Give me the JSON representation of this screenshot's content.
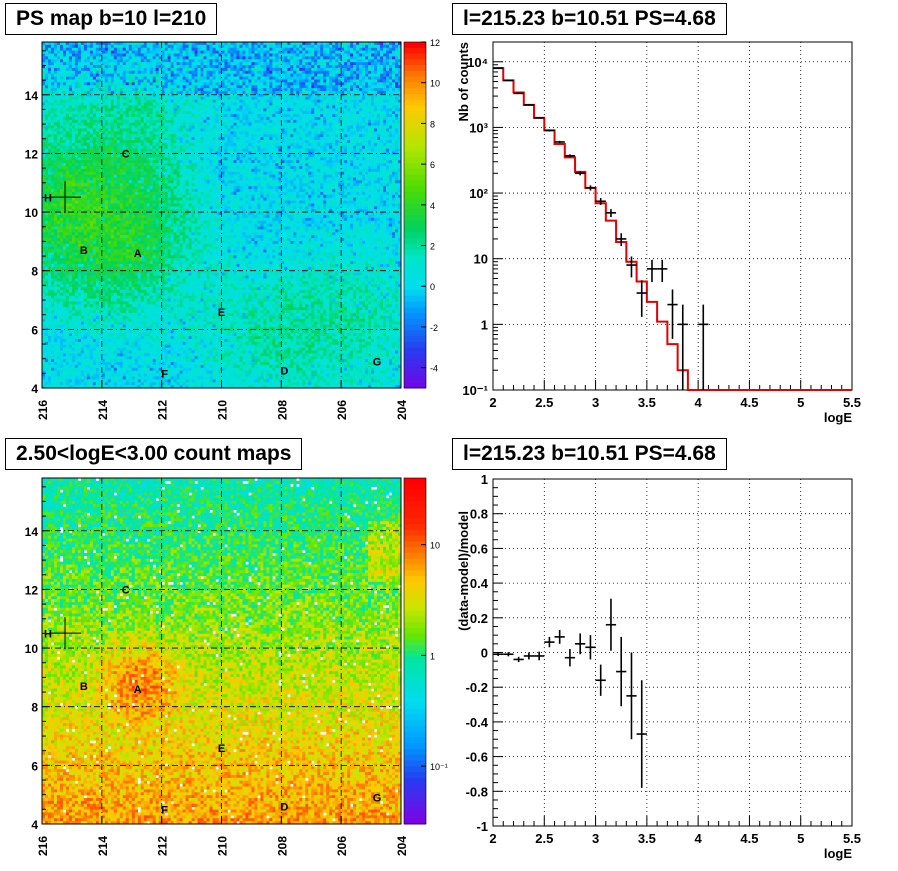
{
  "panels": {
    "ps_map": {
      "title": "PS map b=10 l=210",
      "colorbar_ticks": [
        "-4",
        "-2",
        "0",
        "2",
        "4",
        "6",
        "8",
        "10",
        "12"
      ]
    },
    "count_map": {
      "title": "2.50<logE<3.00 count maps",
      "colorbar_ticks": [
        "10⁻¹",
        "1",
        "10"
      ]
    },
    "spectrum": {
      "title": "l=215.23 b=10.51 PS=4.68"
    },
    "residual": {
      "title": "l=215.23 b=10.51 PS=4.68"
    },
    "source_labels": [
      {
        "name": "H",
        "l": 215.8,
        "b": 10.5
      },
      {
        "name": "C",
        "l": 213.2,
        "b": 12.0
      },
      {
        "name": "B",
        "l": 214.6,
        "b": 8.7
      },
      {
        "name": "A",
        "l": 212.8,
        "b": 8.6
      },
      {
        "name": "E",
        "l": 210.0,
        "b": 6.6
      },
      {
        "name": "F",
        "l": 211.9,
        "b": 4.5
      },
      {
        "name": "D",
        "l": 207.9,
        "b": 4.6
      },
      {
        "name": "G",
        "l": 204.8,
        "b": 4.9
      }
    ],
    "marker": {
      "l": 215.23,
      "b": 10.51
    }
  },
  "chart_data": [
    {
      "type": "heatmap",
      "title": "PS map b=10 l=210",
      "xlabel": "",
      "ylabel": "",
      "xlim": [
        216,
        204
      ],
      "ylim": [
        4,
        15.8
      ],
      "xticks": [
        216,
        214,
        212,
        210,
        208,
        206,
        204
      ],
      "yticks": [
        4,
        6,
        8,
        10,
        12,
        14
      ],
      "zlim": [
        -5,
        12
      ],
      "grid": true
    },
    {
      "type": "line",
      "title": "l=215.23 b=10.51 PS=4.68",
      "xlabel": "logE",
      "ylabel": "Nb of counts",
      "xlim": [
        2,
        5.5
      ],
      "ylim": [
        0.1,
        20000
      ],
      "yscale": "log",
      "xticks": [
        "2",
        "2.5",
        "3",
        "3.5",
        "4",
        "4.5",
        "5",
        "5.5"
      ],
      "yticks": [
        "10⁻¹",
        "1",
        "10",
        "10²",
        "10³",
        "10⁴"
      ],
      "grid": true,
      "series": [
        {
          "kind": "model-step",
          "edges": [
            2.0,
            2.1,
            2.2,
            2.3,
            2.4,
            2.5,
            2.6,
            2.7,
            2.8,
            2.9,
            3.0,
            3.1,
            3.2,
            3.3,
            3.4,
            3.5,
            3.6,
            3.7,
            3.8,
            3.9,
            4.0,
            5.5
          ],
          "values": [
            8000,
            5200,
            3400,
            2200,
            1400,
            900,
            560,
            350,
            210,
            120,
            70,
            38,
            18,
            9,
            4.5,
            2.2,
            1.1,
            0.5,
            0.2,
            0.1,
            0.1
          ]
        },
        {
          "kind": "data-points",
          "x": [
            2.05,
            2.15,
            2.25,
            2.35,
            2.45,
            2.55,
            2.65,
            2.75,
            2.85,
            2.95,
            3.05,
            3.15,
            3.25,
            3.35,
            3.45,
            3.55,
            3.65,
            3.75,
            3.85,
            4.05
          ],
          "y": [
            8000,
            5200,
            3300,
            2200,
            1400,
            900,
            600,
            370,
            200,
            120,
            75,
            50,
            20,
            8,
            3,
            7,
            7,
            2,
            1,
            1
          ],
          "yerr_lo": [
            90,
            70,
            57,
            47,
            37,
            30,
            24,
            19,
            14,
            11,
            9,
            7,
            4.4,
            2.8,
            1.7,
            2.6,
            2.6,
            1.4,
            1.0,
            1.0
          ],
          "yerr_hi": [
            90,
            70,
            57,
            47,
            37,
            30,
            24,
            19,
            14,
            11,
            9,
            7,
            4.4,
            2.8,
            1.7,
            2.6,
            2.6,
            1.4,
            1.0,
            1.0
          ]
        }
      ]
    },
    {
      "type": "heatmap",
      "title": "2.50<logE<3.00 count maps",
      "xlabel": "",
      "ylabel": "",
      "xlim": [
        216,
        204
      ],
      "ylim": [
        4,
        15.8
      ],
      "xticks": [
        216,
        214,
        212,
        210,
        208,
        206,
        204
      ],
      "yticks": [
        4,
        6,
        8,
        10,
        12,
        14
      ],
      "zscale": "log",
      "zlim": [
        0.03,
        40
      ],
      "grid": true
    },
    {
      "type": "scatter",
      "title": "l=215.23 b=10.51 PS=4.68",
      "xlabel": "logE",
      "ylabel": "(data-model)/model",
      "xlim": [
        2,
        5.5
      ],
      "ylim": [
        -1,
        1
      ],
      "xticks": [
        "2",
        "2.5",
        "3",
        "3.5",
        "4",
        "4.5",
        "5",
        "5.5"
      ],
      "yticks": [
        "-1",
        "-0.8",
        "-0.6",
        "-0.4",
        "-0.2",
        "0",
        "0.2",
        "0.4",
        "0.6",
        "0.8",
        "1"
      ],
      "grid": true,
      "x": [
        2.05,
        2.15,
        2.25,
        2.35,
        2.45,
        2.55,
        2.65,
        2.75,
        2.85,
        2.95,
        3.05,
        3.15,
        3.25,
        3.35,
        3.45
      ],
      "y": [
        -0.01,
        -0.01,
        -0.04,
        -0.02,
        -0.02,
        0.06,
        0.09,
        -0.03,
        0.05,
        0.03,
        -0.16,
        0.16,
        -0.11,
        -0.25,
        -0.47
      ],
      "yerr": [
        0.01,
        0.012,
        0.015,
        0.02,
        0.025,
        0.03,
        0.04,
        0.05,
        0.06,
        0.07,
        0.09,
        0.15,
        0.2,
        0.25,
        0.31
      ]
    }
  ],
  "colors": {
    "model_line": "#e00000",
    "data_points": "#000000",
    "grid": "#000000"
  }
}
